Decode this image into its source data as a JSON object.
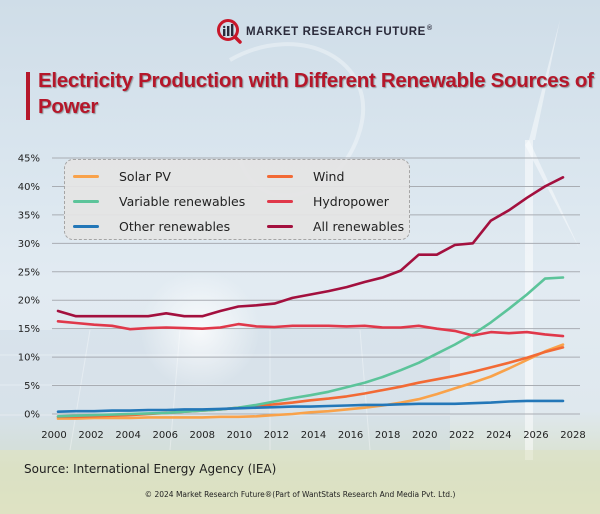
{
  "brand": {
    "name": "MARKET RESEARCH FUTURE",
    "registered": "®"
  },
  "title": "Electricity Production with Different Renewable Sources of Power",
  "source": "Source: International Energy Agency (IEA)",
  "copyright": "© 2024 Market Research Future®(Part of WantStats Research And Media Pvt. Ltd.)",
  "chart_data": {
    "type": "line",
    "title": "Electricity Production with Different Renewable Sources of Power",
    "xlabel": "",
    "ylabel": "",
    "x": [
      2000,
      2001,
      2002,
      2003,
      2004,
      2005,
      2006,
      2007,
      2008,
      2009,
      2010,
      2011,
      2012,
      2013,
      2014,
      2015,
      2016,
      2017,
      2018,
      2019,
      2020,
      2021,
      2022,
      2023,
      2024,
      2025,
      2026,
      2027,
      2028
    ],
    "x_ticks": [
      "2000",
      "2002",
      "2004",
      "2006",
      "2008",
      "2010",
      "2012",
      "2014",
      "2016",
      "2018",
      "2020",
      "2022",
      "2024",
      "2026",
      "2028"
    ],
    "y_ticks": [
      "0%",
      "5%",
      "10%",
      "15%",
      "20%",
      "25%",
      "30%",
      "35%",
      "40%",
      "45%"
    ],
    "ylim": [
      0,
      45
    ],
    "xlim": [
      2000,
      2028
    ],
    "grid": "horizontal",
    "legend_position": "top-left",
    "series": [
      {
        "name": "Solar PV",
        "color": "#f9a24a",
        "values": [
          -0.8,
          -0.8,
          -0.7,
          -0.7,
          -0.7,
          -0.6,
          -0.6,
          -0.6,
          -0.6,
          -0.5,
          -0.5,
          -0.4,
          -0.2,
          0.0,
          0.3,
          0.5,
          0.8,
          1.1,
          1.5,
          2.0,
          2.6,
          3.5,
          4.5,
          5.5,
          6.6,
          8.0,
          9.5,
          11.0,
          12.2
        ]
      },
      {
        "name": "Wind",
        "color": "#f26a35",
        "values": [
          -0.5,
          -0.5,
          -0.4,
          -0.3,
          -0.2,
          0.0,
          0.2,
          0.4,
          0.6,
          0.8,
          1.1,
          1.4,
          1.7,
          2.0,
          2.4,
          2.7,
          3.1,
          3.6,
          4.2,
          4.8,
          5.5,
          6.1,
          6.7,
          7.4,
          8.2,
          9.0,
          9.9,
          10.9,
          11.7
        ]
      },
      {
        "name": "Variable renewables",
        "color": "#5cc49a",
        "values": [
          -0.4,
          -0.3,
          -0.2,
          -0.1,
          0.0,
          0.1,
          0.2,
          0.4,
          0.6,
          0.8,
          1.1,
          1.6,
          2.2,
          2.8,
          3.3,
          3.9,
          4.7,
          5.5,
          6.5,
          7.7,
          9.0,
          10.6,
          12.2,
          14.0,
          16.1,
          18.5,
          21.0,
          23.8,
          24.0
        ]
      },
      {
        "name": "Hydropower",
        "color": "#e0384a",
        "values": [
          16.3,
          16.0,
          15.7,
          15.5,
          14.9,
          15.1,
          15.2,
          15.1,
          15.0,
          15.2,
          15.8,
          15.4,
          15.3,
          15.5,
          15.5,
          15.5,
          15.4,
          15.5,
          15.2,
          15.2,
          15.5,
          15.0,
          14.6,
          13.8,
          14.4,
          14.2,
          14.4,
          14.0,
          13.7
        ]
      },
      {
        "name": "Other renewables",
        "color": "#2377b8",
        "values": [
          0.4,
          0.5,
          0.5,
          0.6,
          0.6,
          0.7,
          0.7,
          0.8,
          0.8,
          0.9,
          1.0,
          1.1,
          1.2,
          1.3,
          1.3,
          1.4,
          1.5,
          1.6,
          1.6,
          1.7,
          1.8,
          1.8,
          1.8,
          1.9,
          2.0,
          2.2,
          2.3,
          2.3,
          2.3
        ]
      },
      {
        "name": "All renewables",
        "color": "#a3103e",
        "values": [
          18.1,
          17.2,
          17.2,
          17.2,
          17.2,
          17.2,
          17.7,
          17.2,
          17.2,
          18.1,
          18.9,
          19.1,
          19.4,
          20.4,
          21.0,
          21.6,
          22.3,
          23.2,
          24.0,
          25.2,
          28.0,
          28.0,
          29.7,
          30.0,
          34.0,
          35.8,
          38.0,
          40.0,
          41.6
        ]
      }
    ]
  }
}
